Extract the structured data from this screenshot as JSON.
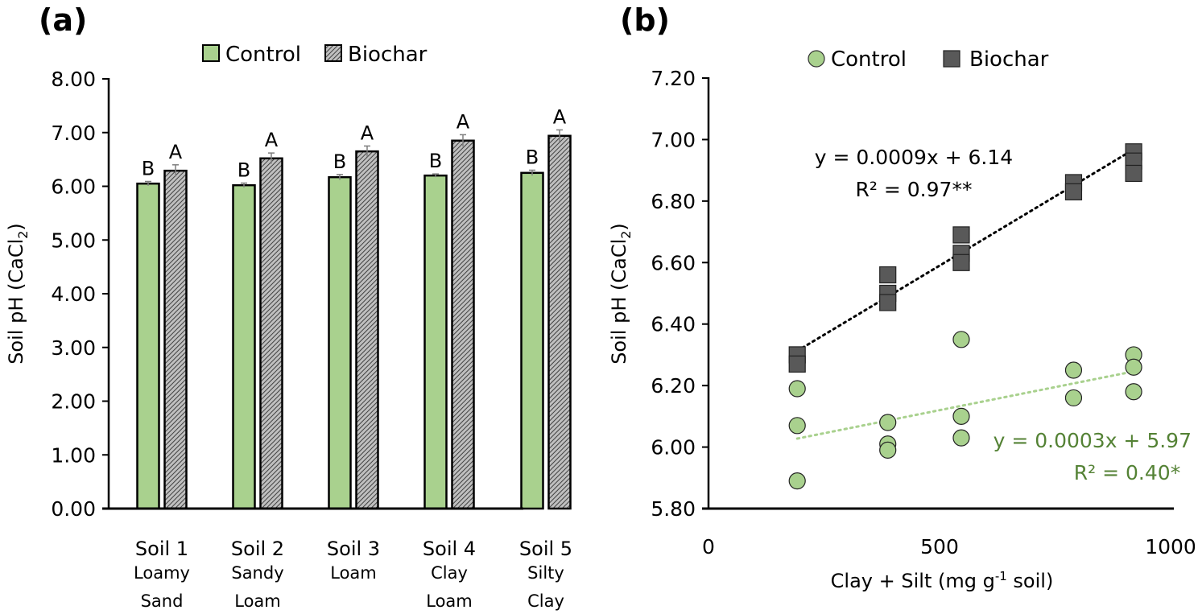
{
  "chart_data": [
    {
      "panel": "(a)",
      "type": "bar",
      "title": "",
      "xlabel": "",
      "ylabel": "Soil pH (CaCl2)",
      "ylabel_main": "Soil pH (CaCl",
      "ylabel_sub": "2",
      "ylabel_close": ")",
      "ylim": [
        0,
        8
      ],
      "yticks": [
        "0.00",
        "1.00",
        "2.00",
        "3.00",
        "4.00",
        "5.00",
        "6.00",
        "7.00",
        "8.00"
      ],
      "grid": false,
      "legend_position": "top-center",
      "categories": [
        "Soil 1",
        "Soil 2",
        "Soil 3",
        "Soil 4",
        "Soil 5"
      ],
      "category_subtitles": [
        [
          "Loamy",
          "Sand"
        ],
        [
          "Sandy",
          "Loam"
        ],
        [
          "Loam"
        ],
        [
          "Clay",
          "Loam"
        ],
        [
          "Silty",
          "Clay"
        ]
      ],
      "series": [
        {
          "name": "Control",
          "color": "#a9d18e",
          "pattern": "solid",
          "values": [
            6.05,
            6.02,
            6.17,
            6.2,
            6.25
          ],
          "errors": [
            0.04,
            0.04,
            0.05,
            0.03,
            0.05
          ],
          "significance": [
            "B",
            "B",
            "B",
            "B",
            "B"
          ]
        },
        {
          "name": "Biochar",
          "color": "#7f7f7f",
          "pattern": "hatched",
          "values": [
            6.29,
            6.52,
            6.65,
            6.85,
            6.94
          ],
          "errors": [
            0.11,
            0.1,
            0.1,
            0.11,
            0.11
          ],
          "significance": [
            "A",
            "A",
            "A",
            "A",
            "A"
          ]
        }
      ]
    },
    {
      "panel": "(b)",
      "type": "scatter",
      "title": "",
      "xlabel_main": "Clay + Silt (mg g",
      "xlabel_sup": "-1",
      "xlabel_end": " soil)",
      "xlabel": "Clay + Silt (mg g-1 soil)",
      "ylabel": "Soil pH (CaCl2)",
      "ylabel_main": "Soil pH (CaCl",
      "ylabel_sub": "2",
      "ylabel_close": ")",
      "xlim": [
        0,
        1000
      ],
      "ylim": [
        5.8,
        7.2
      ],
      "xticks": [
        "0",
        "500",
        "1000"
      ],
      "xtick_values": [
        0,
        500,
        1000
      ],
      "yticks": [
        "5.80",
        "6.00",
        "6.20",
        "6.40",
        "6.60",
        "6.80",
        "7.00",
        "7.20"
      ],
      "grid": false,
      "legend_position": "top-center",
      "series": [
        {
          "name": "Control",
          "marker": "circle",
          "color": "#a9d18e",
          "points": [
            [
              192,
              6.19
            ],
            [
              192,
              6.07
            ],
            [
              192,
              5.89
            ],
            [
              388,
              6.08
            ],
            [
              388,
              6.01
            ],
            [
              388,
              5.99
            ],
            [
              547,
              6.35
            ],
            [
              547,
              6.1
            ],
            [
              547,
              6.03
            ],
            [
              790,
              6.25
            ],
            [
              790,
              6.16
            ],
            [
              920,
              6.3
            ],
            [
              920,
              6.26
            ],
            [
              920,
              6.18
            ]
          ],
          "trendline": {
            "slope": 0.0003,
            "intercept": 5.97,
            "x_range": [
              192,
              920
            ],
            "color": "#a9d18e"
          },
          "equation": "y = 0.0003x + 5.97",
          "r2": "R² = 0.40*",
          "label_color": "#548235"
        },
        {
          "name": "Biochar",
          "marker": "square",
          "color": "#595959",
          "points": [
            [
              192,
              6.3
            ],
            [
              192,
              6.27
            ],
            [
              388,
              6.56
            ],
            [
              388,
              6.5
            ],
            [
              388,
              6.47
            ],
            [
              547,
              6.69
            ],
            [
              547,
              6.63
            ],
            [
              547,
              6.6
            ],
            [
              790,
              6.86
            ],
            [
              790,
              6.83
            ],
            [
              920,
              6.96
            ],
            [
              920,
              6.93
            ],
            [
              920,
              6.89
            ]
          ],
          "trendline": {
            "slope": 0.0009,
            "intercept": 6.14,
            "x_range": [
              192,
              920
            ],
            "color": "#000000"
          },
          "equation": "y = 0.0009x + 6.14",
          "r2": "R² = 0.97**",
          "label_color": "#000000"
        }
      ]
    }
  ]
}
